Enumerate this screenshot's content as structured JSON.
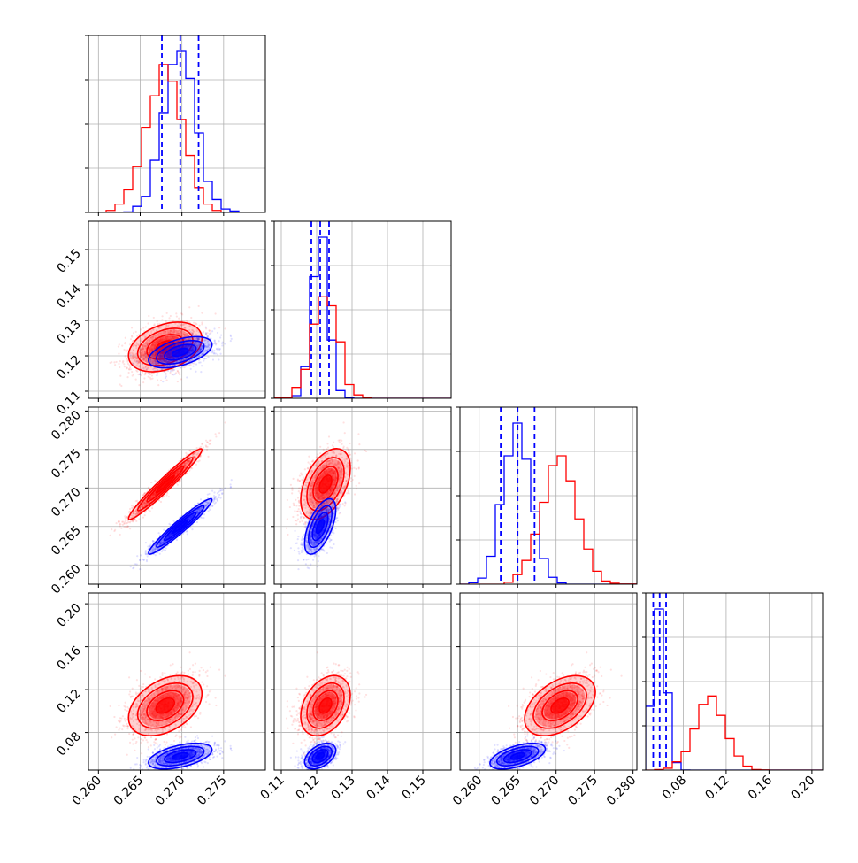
{
  "chart_data": {
    "type": "corner",
    "grid": true,
    "series": [
      {
        "color": "#ff0000",
        "mean": [
          0.268,
          0.1225,
          0.2705,
          0.105
        ],
        "std": [
          0.0022,
          0.0035,
          0.0023,
          0.014
        ],
        "hist_peaks": [
          0.268,
          0.1235,
          0.2705,
          0.107
        ]
      },
      {
        "color": "#0000ff",
        "mean": [
          0.2698,
          0.121,
          0.265,
          0.058
        ],
        "std": [
          0.0019,
          0.0022,
          0.0018,
          0.006
        ],
        "hist_peaks": [
          0.2703,
          0.1225,
          0.2653,
          0.058
        ]
      }
    ],
    "quantile_lines": {
      "color": "#0000ff",
      "params": [
        [
          0.2676,
          0.2698,
          0.272
        ],
        [
          0.1185,
          0.121,
          0.1235
        ],
        [
          0.2628,
          0.265,
          0.2672
        ],
        [
          0.052,
          0.058,
          0.064
        ]
      ]
    },
    "axes": [
      {
        "range": [
          0.2588,
          0.28
        ],
        "ticks": [
          0.26,
          0.265,
          0.27,
          0.275
        ],
        "tick_labels": [
          "0.260",
          "0.265",
          "0.270",
          "0.275"
        ]
      },
      {
        "range": [
          0.108,
          0.158
        ],
        "ticks": [
          0.11,
          0.12,
          0.13,
          0.14,
          0.15
        ],
        "tick_labels": [
          "0.11",
          "0.12",
          "0.13",
          "0.14",
          "0.15"
        ]
      },
      {
        "range": [
          0.2575,
          0.2805
        ],
        "ticks": [
          0.26,
          0.265,
          0.27,
          0.275,
          0.28
        ],
        "tick_labels": [
          "0.260",
          "0.265",
          "0.270",
          "0.275",
          "0.280"
        ]
      },
      {
        "range": [
          0.045,
          0.21
        ],
        "ticks": [
          0.08,
          0.12,
          0.16,
          0.2
        ],
        "tick_labels": [
          "0.08",
          "0.12",
          "0.16",
          "0.20"
        ]
      }
    ]
  }
}
